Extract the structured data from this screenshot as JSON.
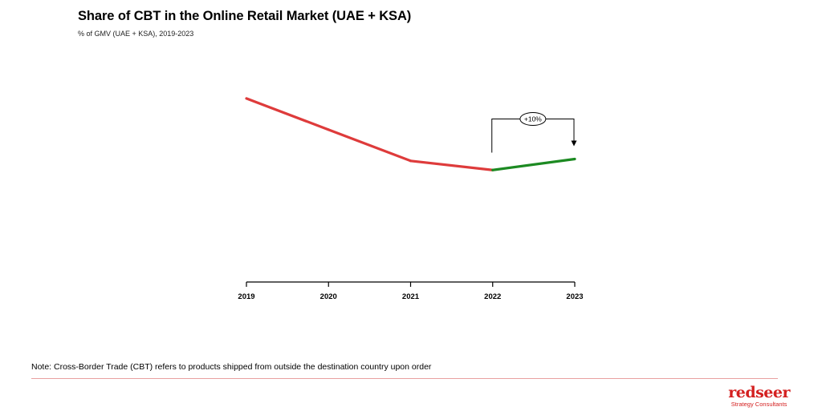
{
  "header": {
    "title": "Share of CBT in the Online Retail Market (UAE + KSA)",
    "subtitle": "% of GMV (UAE + KSA), 2019-2023"
  },
  "chart_data": {
    "type": "line",
    "title": "Share of CBT in the Online Retail Market (UAE + KSA)",
    "subtitle": "% of GMV (UAE + KSA), 2019-2023",
    "categories": [
      "2019",
      "2020",
      "2021",
      "2022",
      "2023"
    ],
    "series": [
      {
        "values": [
          100,
          83,
          66,
          61,
          67
        ],
        "color": "#de3b3b",
        "highlight_from_index": 3,
        "highlight_color": "#1c8a22"
      }
    ],
    "value_axis": {
      "shown": false,
      "range": [
        0,
        110
      ]
    },
    "grid": false,
    "legend": "none",
    "annotations": [
      {
        "text": "+10%",
        "from": "2022",
        "to": "2023",
        "style": "bracket-arrow"
      }
    ]
  },
  "footer": {
    "note": "Note: Cross-Border Trade (CBT) refers to products shipped from outside the destination country upon order",
    "brand": "redseer",
    "brand_tagline": "Strategy Consultants",
    "brand_color": "#d42020",
    "divider_color": "#e8a0a0"
  }
}
